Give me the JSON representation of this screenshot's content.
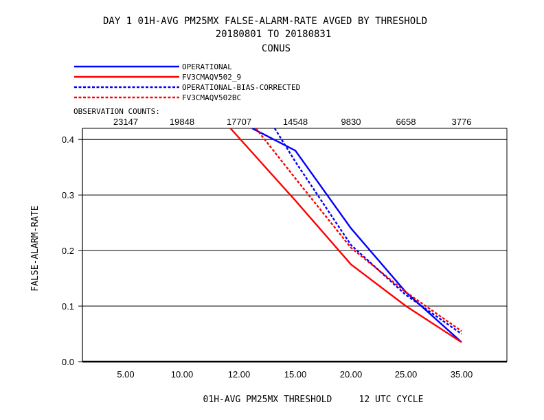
{
  "chart_data": {
    "type": "line",
    "title_lines": [
      "DAY 1   01H-AVG PM25MX FALSE-ALARM-RATE   AVGED BY THRESHOLD",
      "20180801 TO 20180831",
      "CONUS"
    ],
    "xlabel": "01H-AVG PM25MX THRESHOLD     12 UTC CYCLE",
    "ylabel": "FALSE-ALARM-RATE",
    "categories": [
      "5.00",
      "10.00",
      "12.00",
      "15.00",
      "20.00",
      "25.00",
      "35.00"
    ],
    "yticks": [
      "0.0",
      "0.1",
      "0.2",
      "0.3",
      "0.4"
    ],
    "ylim": [
      0,
      0.42
    ],
    "grid": true,
    "legend_position": "top-left",
    "observation_counts_label": "OBSERVATION COUNTS:",
    "observation_counts": [
      "23147",
      "19848",
      "17707",
      "14548",
      "9830",
      "6658",
      "3776"
    ],
    "series": [
      {
        "name": "OPERATIONAL",
        "color": "#0000ff",
        "dash": false,
        "points": [
          [
            12.7,
            0.42
          ],
          [
            15,
            0.38
          ],
          [
            20,
            0.24
          ],
          [
            25,
            0.125
          ],
          [
            35,
            0.035
          ]
        ]
      },
      {
        "name": "FV3CMAQV502_9",
        "color": "#ff0000",
        "dash": false,
        "points": [
          [
            11.7,
            0.42
          ],
          [
            15,
            0.29
          ],
          [
            20,
            0.175
          ],
          [
            25,
            0.1
          ],
          [
            35,
            0.035
          ]
        ]
      },
      {
        "name": "OPERATIONAL-BIAS-CORRECTED",
        "color": "#0000ff",
        "dash": true,
        "points": [
          [
            13.9,
            0.42
          ],
          [
            15,
            0.36
          ],
          [
            20,
            0.21
          ],
          [
            25,
            0.12
          ],
          [
            35,
            0.05
          ]
        ]
      },
      {
        "name": "FV3CMAQV502BC",
        "color": "#ff0000",
        "dash": true,
        "points": [
          [
            12.9,
            0.42
          ],
          [
            15,
            0.33
          ],
          [
            20,
            0.205
          ],
          [
            25,
            0.125
          ],
          [
            35,
            0.055
          ]
        ]
      }
    ]
  }
}
